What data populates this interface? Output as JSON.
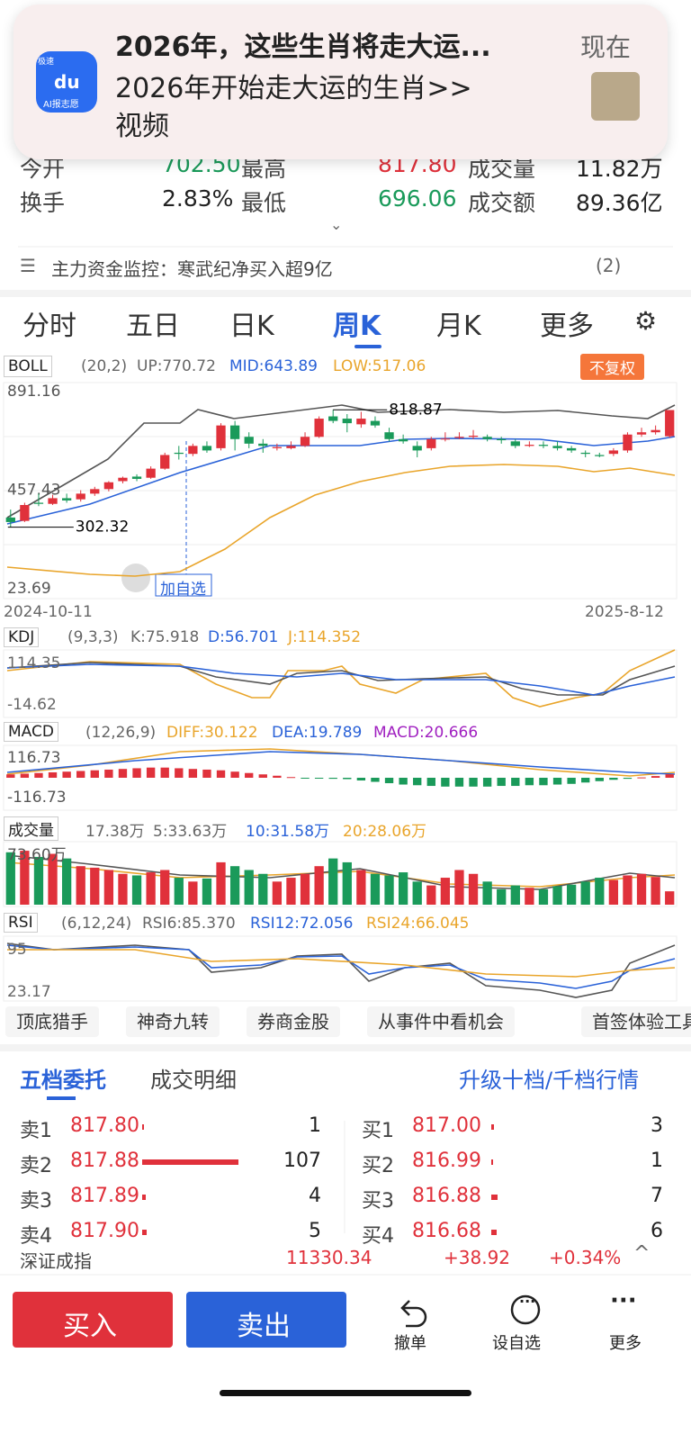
{
  "notification": {
    "title": "2026年，这些生肖将走大运...",
    "body": "2026年开始走大运的生肖>>",
    "tag": "视频",
    "time": "现在",
    "icon_text": "du",
    "icon_label": "AI报志愿",
    "icon_badge": "极速"
  },
  "quote": [
    [
      {
        "label": "今开",
        "value": "702.50"
      },
      {
        "label": "最高",
        "value": "817.80"
      },
      {
        "label": "成交量",
        "value": "11.82万"
      }
    ],
    [
      {
        "label": "换手",
        "value": "2.83%"
      },
      {
        "label": "最低",
        "value": "696.06"
      },
      {
        "label": "成交额",
        "value": "89.36亿"
      }
    ]
  ],
  "monitor": {
    "text": "主力资金监控：寒武纪净买入超9亿",
    "count": "(2)"
  },
  "tabs": [
    "分时",
    "五日",
    "日K",
    "周K",
    "月K",
    "更多"
  ],
  "boll": {
    "name": "BOLL",
    "params": "(20,2)",
    "up": "UP:770.72",
    "mid": "MID:643.89",
    "low": "LOW:517.06",
    "adjust": "不复权",
    "ylim": [
      23.69,
      891.16
    ],
    "yticks": [
      891.16,
      457.43,
      23.69
    ],
    "high_label": 818.87,
    "low_label": 302.32,
    "add_watch": "加自选",
    "x_start": "2024-10-11",
    "x_end": "2025-8-12",
    "candles": [
      [
        345,
        325,
        380,
        302.32
      ],
      [
        330,
        400,
        410,
        325
      ],
      [
        410,
        405,
        450,
        395
      ],
      [
        405,
        430,
        445,
        400
      ],
      [
        430,
        420,
        450,
        410
      ],
      [
        425,
        450,
        465,
        415
      ],
      [
        450,
        470,
        480,
        440
      ],
      [
        470,
        500,
        505,
        460
      ],
      [
        505,
        520,
        525,
        495
      ],
      [
        525,
        515,
        535,
        505
      ],
      [
        520,
        560,
        570,
        515
      ],
      [
        560,
        620,
        630,
        555
      ],
      [
        630,
        625,
        660,
        600
      ],
      [
        625,
        660,
        670,
        615
      ],
      [
        660,
        640,
        680,
        630
      ],
      [
        650,
        750,
        760,
        640
      ],
      [
        750,
        690,
        770,
        640
      ],
      [
        700,
        670,
        720,
        650
      ],
      [
        670,
        660,
        690,
        630
      ],
      [
        650,
        655,
        670,
        640
      ],
      [
        650,
        660,
        680,
        645
      ],
      [
        660,
        700,
        720,
        655
      ],
      [
        700,
        780,
        790,
        695
      ],
      [
        790,
        770,
        818.87,
        760
      ],
      [
        780,
        760,
        800,
        720
      ],
      [
        755,
        780,
        810,
        740
      ],
      [
        770,
        750,
        790,
        740
      ],
      [
        720,
        690,
        740,
        680
      ],
      [
        690,
        680,
        710,
        670
      ],
      [
        660,
        640,
        680,
        610
      ],
      [
        650,
        690,
        700,
        640
      ],
      [
        690,
        692,
        720,
        680
      ],
      [
        695,
        700,
        720,
        690
      ],
      [
        700,
        705,
        730,
        690
      ],
      [
        700,
        690,
        710,
        680
      ],
      [
        690,
        685,
        700,
        670
      ],
      [
        680,
        660,
        690,
        650
      ],
      [
        660,
        665,
        680,
        655
      ],
      [
        665,
        660,
        680,
        650
      ],
      [
        660,
        650,
        680,
        640
      ],
      [
        650,
        640,
        660,
        630
      ],
      [
        630,
        625,
        640,
        610
      ],
      [
        620,
        615,
        630,
        610
      ],
      [
        625,
        640,
        650,
        615
      ],
      [
        640,
        710,
        720,
        630
      ],
      [
        710,
        720,
        740,
        700
      ],
      [
        720,
        730,
        750,
        710
      ],
      [
        702.5,
        817.8,
        817.8,
        696.06
      ]
    ]
  },
  "kdj": {
    "name": "KDJ",
    "params": "(9,3,3)",
    "k": "K:75.918",
    "d": "D:56.701",
    "j": "J:114.352",
    "yticks": [
      114.35,
      -14.62
    ]
  },
  "macd": {
    "name": "MACD",
    "params": "(12,26,9)",
    "diff": "DIFF:30.122",
    "dea": "DEA:19.789",
    "macd": "MACD:20.666",
    "ylim": [
      -116.73,
      116.73
    ],
    "yticks": [
      116.73,
      -116.73
    ],
    "values": [
      20,
      24,
      28,
      32,
      36,
      40,
      44,
      48,
      52,
      56,
      60,
      60,
      56,
      52,
      48,
      44,
      36,
      28,
      20,
      12,
      4,
      -2,
      -4,
      -6,
      -8,
      -16,
      -24,
      -32,
      -40,
      -44,
      -48,
      -52,
      -52,
      -52,
      -52,
      -48,
      -48,
      -44,
      -44,
      -40,
      -36,
      -28,
      -20,
      -12,
      -6,
      2,
      10,
      20.666
    ]
  },
  "volume": {
    "name": "成交量",
    "total": "17.38万",
    "ma5": "5:33.63万",
    "ma10": "10:31.58万",
    "ma20": "20:28.06万",
    "ylim": [
      0,
      73.6
    ],
    "yticks": [
      {
        "value": 73.6,
        "label": "73.60万"
      }
    ],
    "values": [
      68,
      70,
      62,
      66,
      60,
      50,
      48,
      45,
      40,
      38,
      42,
      45,
      35,
      30,
      34,
      55,
      50,
      45,
      40,
      30,
      35,
      40,
      50,
      60,
      55,
      45,
      40,
      38,
      42,
      30,
      25,
      35,
      45,
      40,
      30,
      20,
      25,
      22,
      20,
      24,
      26,
      30,
      35,
      32,
      38,
      40,
      36,
      17.38
    ]
  },
  "rsi": {
    "name": "RSI",
    "params": "(6,12,24)",
    "rsi6": "RSI6:85.370",
    "rsi12": "RSI12:72.056",
    "rsi24": "RSI24:66.045",
    "yticks": [
      95,
      23.17
    ]
  },
  "chips": [
    "顶底猎手",
    "神奇九转",
    "券商金股",
    "从事件中看机会",
    "首签体验工具"
  ],
  "orderbook": {
    "tabs": [
      "五档委托",
      "成交明细"
    ],
    "upgrade": "升级十档/千档行情",
    "asks": [
      {
        "label": "卖1",
        "price": "817.80",
        "qty": 1
      },
      {
        "label": "卖2",
        "price": "817.88",
        "qty": 107
      },
      {
        "label": "卖3",
        "price": "817.89",
        "qty": 4
      },
      {
        "label": "卖4",
        "price": "817.90",
        "qty": 5
      }
    ],
    "bids": [
      {
        "label": "买1",
        "price": "817.00",
        "qty": 3
      },
      {
        "label": "买2",
        "price": "816.99",
        "qty": 1
      },
      {
        "label": "买3",
        "price": "816.88",
        "qty": 7
      },
      {
        "label": "买4",
        "price": "816.68",
        "qty": 6
      }
    ]
  },
  "index": {
    "name": "深证成指",
    "value": "11330.34",
    "change": "+38.92",
    "pct": "+0.34%"
  },
  "actions": {
    "buy": "买入",
    "sell": "卖出",
    "tools": [
      "撤单",
      "设自选",
      "更多"
    ]
  }
}
